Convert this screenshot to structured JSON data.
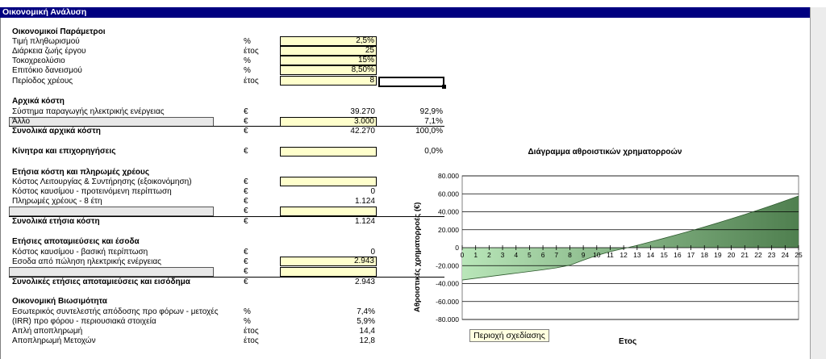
{
  "sheet_title": "Οικονομική Ανάλυση",
  "financial_params": {
    "header": "Οικονομικοί Παράμετροι",
    "rows": [
      {
        "label": "Τιμή πληθωρισμού",
        "unit": "%",
        "value": "2,5%"
      },
      {
        "label": "Διάρκεια ζωής έργου",
        "unit": "έτος",
        "value": "25"
      },
      {
        "label": "Τοκοχρεολύσιο",
        "unit": "%",
        "value": "15%"
      },
      {
        "label": "Επιτόκιο δανεισμού",
        "unit": "%",
        "value": "8,50%"
      },
      {
        "label": "Περίοδος χρέους",
        "unit": "έτος",
        "value": "8"
      }
    ]
  },
  "initial_costs": {
    "header": "Αρχικά κόστη",
    "system": {
      "label": "Σύστημα παραγωγής ηλεκτρικής ενέργειας",
      "unit": "€",
      "value": "39.270",
      "percent": "92,9%"
    },
    "other": {
      "label": "Άλλο",
      "unit": "€",
      "value": "3.000",
      "percent": "7,1%"
    },
    "total": {
      "label": "Συνολικά αρχικά κόστη",
      "unit": "€",
      "value": "42.270",
      "percent": "100,0%"
    }
  },
  "incentives": {
    "label": "Κίνητρα και επιχορηγήσεις",
    "unit": "€",
    "value": "",
    "percent": "0,0%"
  },
  "annual_costs": {
    "header": "Ετήσια κόστη και πληρωμές χρέους",
    "om": {
      "label": "Κόστος Λειτουργίας & Συντήρησης (εξοικονόμηση)",
      "unit": "€",
      "value": ""
    },
    "fuel": {
      "label": "Κόστος καυσίμου - προτεινόμενη περίπτωση",
      "unit": "€",
      "value": "0"
    },
    "debt": {
      "label": "Πληρωμές χρέους - 8 έτη",
      "unit": "€",
      "value": "1.124"
    },
    "blank_unit": "€",
    "total": {
      "label": "Συνολικά ετήσια κόστη",
      "unit": "€",
      "value": "1.124"
    }
  },
  "annual_savings": {
    "header": "Ετήσιες αποταμιεύσεις και έσοδα",
    "fuel_base": {
      "label": "Κόστος καυσίμου - βασική περίπτωση",
      "unit": "€",
      "value": "0"
    },
    "electricity": {
      "label": "Εσοδα από πώληση ηλεκτρικής ενέργειας",
      "unit": "€",
      "value": "2.943"
    },
    "blank_unit": "€",
    "total": {
      "label": "Συνολικές ετήσιες αποταμιεύσεις και εισόδημα",
      "unit": "€",
      "value": "2.943"
    }
  },
  "viability": {
    "header": "Οικονομική Βιωσιμότητα",
    "rows": [
      {
        "label": "Εσωτερικός συντελεστής απόδοσης προ φόρων - μετοχές",
        "unit": "%",
        "value": "7,4%"
      },
      {
        "label": "(IRR) προ φόρου - περιουσιακά στοιχεία",
        "unit": "%",
        "value": "5,9%"
      },
      {
        "label": "Απλή αποπληρωμή",
        "unit": "έτος",
        "value": "14,4"
      },
      {
        "label": "Αποπληρωμή Μετοχών",
        "unit": "έτος",
        "value": "12,8"
      }
    ]
  },
  "chart_area_button": "Περιοχή σχεδίασης",
  "chart_data": {
    "type": "area",
    "title": "Διάγραμμα αθροιστικών χρηματορροών",
    "xlabel": "Ετος",
    "ylabel": "Αθροιστικές χρηματορροές (€)",
    "x": [
      0,
      1,
      2,
      3,
      4,
      5,
      6,
      7,
      8,
      9,
      10,
      11,
      12,
      13,
      14,
      15,
      16,
      17,
      18,
      19,
      20,
      21,
      22,
      23,
      24,
      25
    ],
    "y": [
      -36000,
      -34100,
      -32200,
      -30300,
      -28400,
      -26500,
      -24600,
      -22500,
      -19500,
      -13900,
      -8700,
      -4400,
      -1000,
      2600,
      6500,
      10500,
      14600,
      18800,
      23100,
      27600,
      32200,
      37000,
      41900,
      47000,
      52200,
      57500
    ],
    "ylim": [
      -80000,
      80000
    ],
    "yticks": [
      "-80.000",
      "-60.000",
      "-40.000",
      "-20.000",
      "0",
      "20.000",
      "40.000",
      "60.000",
      "80.000"
    ],
    "ytick_values": [
      -80000,
      -60000,
      -40000,
      -20000,
      0,
      20000,
      40000,
      60000,
      80000
    ],
    "xticks": [
      "0",
      "1",
      "2",
      "3",
      "4",
      "5",
      "6",
      "7",
      "8",
      "9",
      "10",
      "11",
      "12",
      "13",
      "14",
      "15",
      "16",
      "17",
      "18",
      "19",
      "20",
      "21",
      "22",
      "23",
      "24",
      "25"
    ],
    "grid": true,
    "fill_color": "#b9e6b9",
    "fill_dark": "#4f7f4f"
  }
}
